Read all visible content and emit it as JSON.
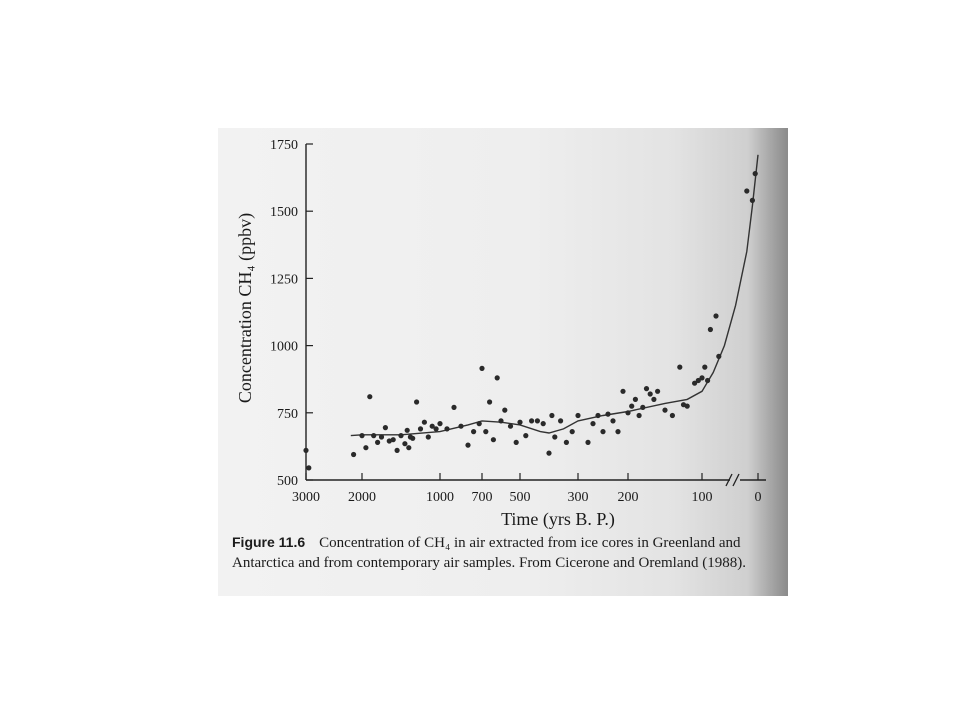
{
  "caption": {
    "figure_label": "Figure 11.6",
    "text": "Concentration of CH₄ in air extracted from ice cores in Greenland and Antarctica and from contemporary air samples. From Cicerone and Oremland (1988)."
  },
  "chart_data": {
    "type": "scatter",
    "xlabel": "Time (yrs B. P.)",
    "ylabel": "Concentration CH₄ (ppbv)",
    "x_scale": "log-like (years before present, reversed; axis break between 100 and 0)",
    "ylim": [
      500,
      1750
    ],
    "x_ticks": [
      "3000",
      "2000",
      "1000",
      "700",
      "500",
      "300",
      "200",
      "100",
      "0"
    ],
    "y_ticks": [
      "500",
      "750",
      "1000",
      "1250",
      "1500",
      "1750"
    ],
    "axis_break": "between 100 and 0",
    "grid": false,
    "legend": "none",
    "colors": {
      "points": "#2a2a2a",
      "line": "#333333",
      "axis": "#222222"
    },
    "series": [
      {
        "values": [
          [
            3000,
            610
          ],
          [
            2950,
            545
          ],
          [
            2150,
            595
          ],
          [
            2000,
            665
          ],
          [
            1950,
            620
          ],
          [
            1900,
            810
          ],
          [
            1850,
            665
          ],
          [
            1800,
            640
          ],
          [
            1750,
            660
          ],
          [
            1700,
            695
          ],
          [
            1650,
            645
          ],
          [
            1600,
            650
          ],
          [
            1550,
            610
          ],
          [
            1500,
            665
          ],
          [
            1450,
            635
          ],
          [
            1420,
            685
          ],
          [
            1400,
            620
          ],
          [
            1380,
            660
          ],
          [
            1350,
            655
          ],
          [
            1300,
            790
          ],
          [
            1250,
            690
          ],
          [
            1200,
            715
          ],
          [
            1150,
            660
          ],
          [
            1100,
            700
          ],
          [
            1050,
            690
          ],
          [
            1000,
            710
          ],
          [
            950,
            690
          ],
          [
            900,
            770
          ],
          [
            850,
            700
          ],
          [
            800,
            630
          ],
          [
            760,
            680
          ],
          [
            720,
            710
          ],
          [
            700,
            915
          ],
          [
            680,
            680
          ],
          [
            660,
            790
          ],
          [
            640,
            650
          ],
          [
            620,
            880
          ],
          [
            600,
            720
          ],
          [
            580,
            760
          ],
          [
            550,
            700
          ],
          [
            520,
            640
          ],
          [
            500,
            715
          ],
          [
            480,
            665
          ],
          [
            460,
            720
          ],
          [
            440,
            720
          ],
          [
            420,
            710
          ],
          [
            400,
            600
          ],
          [
            390,
            740
          ],
          [
            380,
            660
          ],
          [
            360,
            720
          ],
          [
            340,
            640
          ],
          [
            320,
            680
          ],
          [
            300,
            740
          ],
          [
            280,
            640
          ],
          [
            270,
            710
          ],
          [
            260,
            740
          ],
          [
            250,
            680
          ],
          [
            240,
            745
          ],
          [
            230,
            720
          ],
          [
            220,
            680
          ],
          [
            210,
            830
          ],
          [
            200,
            750
          ],
          [
            195,
            775
          ],
          [
            190,
            800
          ],
          [
            185,
            740
          ],
          [
            180,
            770
          ],
          [
            175,
            840
          ],
          [
            170,
            820
          ],
          [
            165,
            800
          ],
          [
            160,
            830
          ],
          [
            150,
            760
          ],
          [
            140,
            740
          ],
          [
            130,
            920
          ],
          [
            125,
            780
          ],
          [
            120,
            775
          ],
          [
            110,
            860
          ],
          [
            105,
            870
          ],
          [
            100,
            880
          ],
          [
            95,
            920
          ],
          [
            90,
            870
          ],
          [
            85,
            1060
          ],
          [
            75,
            1110
          ],
          [
            70,
            960
          ],
          [
            20,
            1575
          ],
          [
            10,
            1540
          ],
          [
            5,
            1640
          ]
        ]
      },
      {
        "type": "line",
        "values": [
          [
            2200,
            665
          ],
          [
            2000,
            668
          ],
          [
            1500,
            668
          ],
          [
            1000,
            680
          ],
          [
            800,
            705
          ],
          [
            700,
            720
          ],
          [
            600,
            715
          ],
          [
            500,
            705
          ],
          [
            430,
            680
          ],
          [
            400,
            675
          ],
          [
            350,
            690
          ],
          [
            300,
            720
          ],
          [
            250,
            740
          ],
          [
            200,
            755
          ],
          [
            150,
            785
          ],
          [
            120,
            800
          ],
          [
            100,
            830
          ],
          [
            80,
            900
          ],
          [
            60,
            1000
          ],
          [
            40,
            1150
          ],
          [
            20,
            1350
          ],
          [
            10,
            1520
          ],
          [
            0,
            1710
          ]
        ]
      }
    ]
  }
}
